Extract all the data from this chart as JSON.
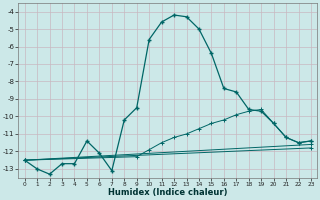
{
  "xlabel": "Humidex (Indice chaleur)",
  "background_color": "#cce8e8",
  "grid_color": "#ddeeee",
  "line_color": "#006666",
  "xlim": [
    -0.5,
    23.5
  ],
  "ylim": [
    -13.5,
    -3.5
  ],
  "yticks": [
    -13,
    -12,
    -11,
    -10,
    -9,
    -8,
    -7,
    -6,
    -5,
    -4
  ],
  "xticks": [
    0,
    1,
    2,
    3,
    4,
    5,
    6,
    7,
    8,
    9,
    10,
    11,
    12,
    13,
    14,
    15,
    16,
    17,
    18,
    19,
    20,
    21,
    22,
    23
  ],
  "series_main": {
    "x": [
      0,
      1,
      2,
      3,
      4,
      5,
      6,
      7,
      8,
      9,
      10,
      11,
      12,
      13,
      14,
      15,
      16,
      17,
      18,
      19,
      20,
      21,
      22,
      23
    ],
    "y": [
      -12.5,
      -13.0,
      -13.3,
      -12.7,
      -12.7,
      -11.4,
      -12.1,
      -13.1,
      -10.2,
      -9.5,
      -5.6,
      -4.6,
      -4.2,
      -4.3,
      -5.0,
      -6.4,
      -8.4,
      -8.6,
      -9.6,
      -9.7,
      -10.4,
      -11.2,
      -11.5,
      -11.4
    ]
  },
  "series_lines": [
    {
      "x": [
        0,
        9,
        10,
        11,
        12,
        13,
        14,
        15,
        16,
        17,
        18,
        19,
        20,
        21,
        22,
        23
      ],
      "y": [
        -12.5,
        -12.3,
        -11.9,
        -11.5,
        -11.2,
        -11.0,
        -10.7,
        -10.4,
        -10.2,
        -9.9,
        -9.7,
        -9.6,
        -10.4,
        -11.2,
        -11.5,
        -11.4
      ]
    },
    {
      "x": [
        0,
        23
      ],
      "y": [
        -12.5,
        -11.6
      ]
    },
    {
      "x": [
        0,
        23
      ],
      "y": [
        -12.5,
        -11.8
      ]
    }
  ]
}
